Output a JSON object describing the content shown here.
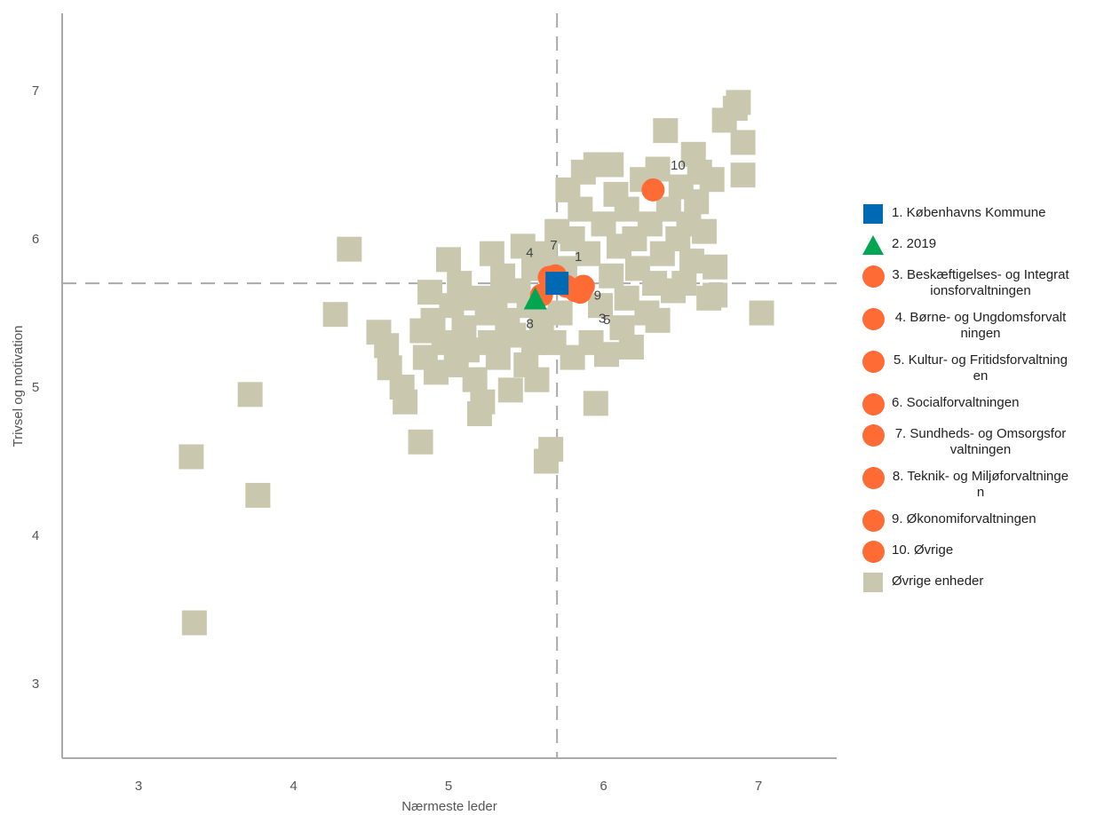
{
  "chart_data": {
    "type": "scatter",
    "title": "",
    "xlabel": "Nærmeste leder",
    "ylabel": "Trivsel og motivation",
    "xlim": [
      2.5,
      7.5
    ],
    "ylim": [
      2.5,
      7.5
    ],
    "xticks": [
      "3",
      "4",
      "5",
      "6",
      "7"
    ],
    "yticks": [
      "3",
      "4",
      "5",
      "6",
      "7"
    ],
    "reference_lines": {
      "x": 5.7,
      "y": 5.7
    },
    "grid": false,
    "legend_position": "right",
    "colors": {
      "blue": "#0069b4",
      "green": "#00a651",
      "orange": "#ff6b35",
      "gray": "#c9c8ae"
    },
    "series": [
      {
        "name": "1. Københavns Kommune",
        "marker": "square",
        "color": "#0069b4",
        "points": [
          {
            "x": 5.7,
            "y": 5.7,
            "label": "1"
          }
        ]
      },
      {
        "name": "2. 2019",
        "marker": "triangle",
        "color": "#00a651",
        "points": [
          {
            "x": 5.56,
            "y": 5.59,
            "label": ""
          }
        ]
      },
      {
        "name": "3. Beskæftigelses- og Integrationsforvaltningen",
        "marker": "circle",
        "color": "#ff6b35",
        "points": [
          {
            "x": 5.82,
            "y": 5.65,
            "label": "3"
          }
        ]
      },
      {
        "name": "4. Børne- og Ungdomsforvaltningen",
        "marker": "circle",
        "color": "#ff6b35",
        "points": [
          {
            "x": 5.65,
            "y": 5.74,
            "label": "4"
          }
        ]
      },
      {
        "name": "5. Kultur- og Fritidsforvaltningen",
        "marker": "circle",
        "color": "#ff6b35",
        "points": [
          {
            "x": 5.85,
            "y": 5.64,
            "label": "5"
          }
        ]
      },
      {
        "name": "6. Socialforvaltningen",
        "marker": "circle",
        "color": "#ff6b35",
        "points": [
          {
            "x": 5.76,
            "y": 5.68,
            "label": ""
          }
        ]
      },
      {
        "name": "7. Sundheds- og Omsorgsforvaltningen",
        "marker": "circle",
        "color": "#ff6b35",
        "points": [
          {
            "x": 5.69,
            "y": 5.75,
            "label": "7"
          }
        ]
      },
      {
        "name": "8. Teknik- og Miljøforvaltningen",
        "marker": "circle",
        "color": "#ff6b35",
        "points": [
          {
            "x": 5.6,
            "y": 5.62,
            "label": "8"
          }
        ]
      },
      {
        "name": "9. Økonomiforvaltningen",
        "marker": "circle",
        "color": "#ff6b35",
        "points": [
          {
            "x": 5.87,
            "y": 5.68,
            "label": "9"
          }
        ]
      },
      {
        "name": "10. Øvrige",
        "marker": "circle",
        "color": "#ff6b35",
        "points": [
          {
            "x": 6.32,
            "y": 6.33,
            "label": "10"
          }
        ]
      },
      {
        "name": "Øvrige enheder",
        "marker": "square",
        "color": "#c9c8ae",
        "points": [
          {
            "x": 3.34,
            "y": 4.53
          },
          {
            "x": 3.36,
            "y": 3.41
          },
          {
            "x": 3.72,
            "y": 4.95
          },
          {
            "x": 3.77,
            "y": 4.27
          },
          {
            "x": 4.27,
            "y": 5.49
          },
          {
            "x": 4.36,
            "y": 5.93
          },
          {
            "x": 4.55,
            "y": 5.37
          },
          {
            "x": 4.6,
            "y": 5.28
          },
          {
            "x": 4.62,
            "y": 5.13
          },
          {
            "x": 4.7,
            "y": 5.0
          },
          {
            "x": 4.72,
            "y": 4.9
          },
          {
            "x": 4.82,
            "y": 4.63
          },
          {
            "x": 4.83,
            "y": 5.38
          },
          {
            "x": 4.85,
            "y": 5.2
          },
          {
            "x": 4.88,
            "y": 5.64
          },
          {
            "x": 4.9,
            "y": 5.45
          },
          {
            "x": 4.92,
            "y": 5.1
          },
          {
            "x": 4.97,
            "y": 5.3
          },
          {
            "x": 5.0,
            "y": 5.86
          },
          {
            "x": 5.02,
            "y": 5.55
          },
          {
            "x": 5.05,
            "y": 5.15
          },
          {
            "x": 5.07,
            "y": 5.7
          },
          {
            "x": 5.1,
            "y": 5.4
          },
          {
            "x": 5.12,
            "y": 5.25
          },
          {
            "x": 5.15,
            "y": 5.6
          },
          {
            "x": 5.17,
            "y": 5.05
          },
          {
            "x": 5.2,
            "y": 4.82
          },
          {
            "x": 5.22,
            "y": 4.9
          },
          {
            "x": 5.25,
            "y": 5.5
          },
          {
            "x": 5.27,
            "y": 5.3
          },
          {
            "x": 5.28,
            "y": 5.9
          },
          {
            "x": 5.3,
            "y": 5.6
          },
          {
            "x": 5.32,
            "y": 5.2
          },
          {
            "x": 5.35,
            "y": 5.75
          },
          {
            "x": 5.38,
            "y": 5.45
          },
          {
            "x": 5.4,
            "y": 4.98
          },
          {
            "x": 5.42,
            "y": 5.35
          },
          {
            "x": 5.45,
            "y": 5.65
          },
          {
            "x": 5.48,
            "y": 5.95
          },
          {
            "x": 5.5,
            "y": 5.15
          },
          {
            "x": 5.52,
            "y": 5.55
          },
          {
            "x": 5.55,
            "y": 5.3
          },
          {
            "x": 5.55,
            "y": 5.8
          },
          {
            "x": 5.57,
            "y": 5.05
          },
          {
            "x": 5.6,
            "y": 5.45
          },
          {
            "x": 5.62,
            "y": 5.9
          },
          {
            "x": 5.63,
            "y": 4.5
          },
          {
            "x": 5.66,
            "y": 4.58
          },
          {
            "x": 5.68,
            "y": 5.3
          },
          {
            "x": 5.7,
            "y": 6.05
          },
          {
            "x": 5.72,
            "y": 5.5
          },
          {
            "x": 5.75,
            "y": 5.8
          },
          {
            "x": 5.77,
            "y": 6.33
          },
          {
            "x": 5.8,
            "y": 5.2
          },
          {
            "x": 5.8,
            "y": 6.0
          },
          {
            "x": 5.85,
            "y": 6.2
          },
          {
            "x": 5.87,
            "y": 6.45
          },
          {
            "x": 5.9,
            "y": 5.9
          },
          {
            "x": 5.92,
            "y": 5.3
          },
          {
            "x": 5.95,
            "y": 4.89
          },
          {
            "x": 5.95,
            "y": 6.5
          },
          {
            "x": 5.98,
            "y": 5.55
          },
          {
            "x": 6.0,
            "y": 6.1
          },
          {
            "x": 6.02,
            "y": 5.22
          },
          {
            "x": 6.05,
            "y": 6.5
          },
          {
            "x": 6.05,
            "y": 5.75
          },
          {
            "x": 6.08,
            "y": 6.3
          },
          {
            "x": 6.1,
            "y": 5.95
          },
          {
            "x": 6.12,
            "y": 5.4
          },
          {
            "x": 6.15,
            "y": 6.2
          },
          {
            "x": 6.15,
            "y": 5.6
          },
          {
            "x": 6.18,
            "y": 5.27
          },
          {
            "x": 6.2,
            "y": 6.0
          },
          {
            "x": 6.22,
            "y": 5.8
          },
          {
            "x": 6.25,
            "y": 6.4
          },
          {
            "x": 6.28,
            "y": 5.5
          },
          {
            "x": 6.3,
            "y": 6.1
          },
          {
            "x": 6.33,
            "y": 5.7
          },
          {
            "x": 6.35,
            "y": 5.45
          },
          {
            "x": 6.35,
            "y": 6.47
          },
          {
            "x": 6.38,
            "y": 5.9
          },
          {
            "x": 6.4,
            "y": 6.73
          },
          {
            "x": 6.42,
            "y": 6.2
          },
          {
            "x": 6.45,
            "y": 5.65
          },
          {
            "x": 6.48,
            "y": 6.0
          },
          {
            "x": 6.5,
            "y": 6.35
          },
          {
            "x": 6.52,
            "y": 5.7
          },
          {
            "x": 6.55,
            "y": 6.1
          },
          {
            "x": 6.57,
            "y": 5.85
          },
          {
            "x": 6.58,
            "y": 6.57
          },
          {
            "x": 6.6,
            "y": 6.25
          },
          {
            "x": 6.62,
            "y": 6.45
          },
          {
            "x": 6.65,
            "y": 6.05
          },
          {
            "x": 6.68,
            "y": 5.6
          },
          {
            "x": 6.7,
            "y": 6.4
          },
          {
            "x": 6.72,
            "y": 5.62
          },
          {
            "x": 6.72,
            "y": 5.81
          },
          {
            "x": 6.78,
            "y": 6.8
          },
          {
            "x": 6.85,
            "y": 6.88
          },
          {
            "x": 6.87,
            "y": 6.92
          },
          {
            "x": 6.9,
            "y": 6.65
          },
          {
            "x": 6.9,
            "y": 6.43
          },
          {
            "x": 7.02,
            "y": 5.5
          }
        ]
      }
    ]
  }
}
